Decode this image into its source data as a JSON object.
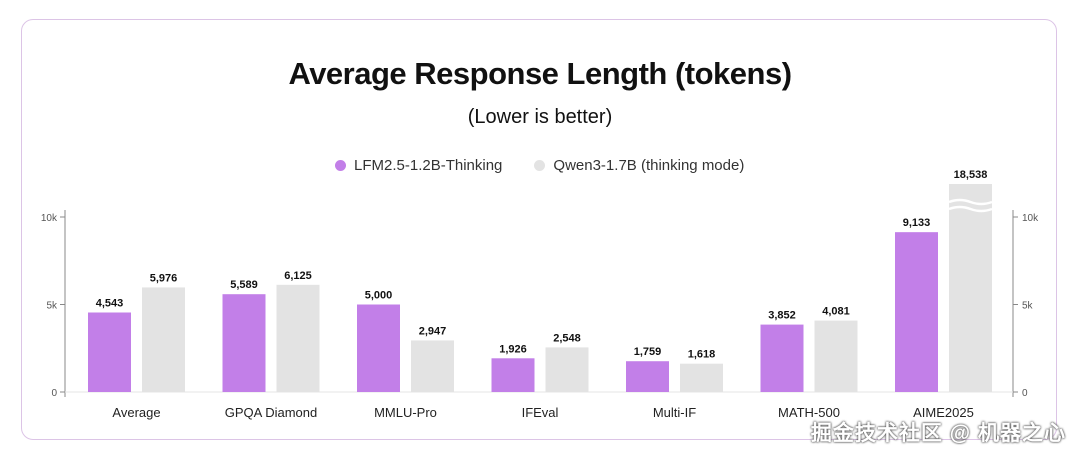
{
  "chart_data": {
    "type": "bar",
    "title": "Average Response Length (tokens)",
    "subtitle": "(Lower is better)",
    "categories": [
      "Average",
      "GPQA Diamond",
      "MMLU-Pro",
      "IFEval",
      "Multi-IF",
      "MATH-500",
      "AIME2025"
    ],
    "series": [
      {
        "name": "LFM2.5-1.2B-Thinking",
        "color": "#c27fe8",
        "values": [
          4543,
          5589,
          5000,
          1926,
          1759,
          3852,
          9133
        ],
        "labels": [
          "4,543",
          "5,589",
          "5,000",
          "1,926",
          "1,759",
          "3,852",
          "9,133"
        ]
      },
      {
        "name": "Qwen3-1.7B (thinking mode)",
        "color": "#e3e3e3",
        "values": [
          5976,
          6125,
          2947,
          2548,
          1618,
          4081,
          18538
        ],
        "labels": [
          "5,976",
          "6,125",
          "2,947",
          "2,548",
          "1,618",
          "4,081",
          "18,538"
        ]
      }
    ],
    "yticks": [
      0,
      5000,
      10000
    ],
    "ytick_labels": [
      "0",
      "5k",
      "10k"
    ],
    "ylim": [
      0,
      10000
    ],
    "axis_break": true,
    "legend_position": "top-center"
  },
  "watermark": "掘金技术社区 @ 机器之心"
}
